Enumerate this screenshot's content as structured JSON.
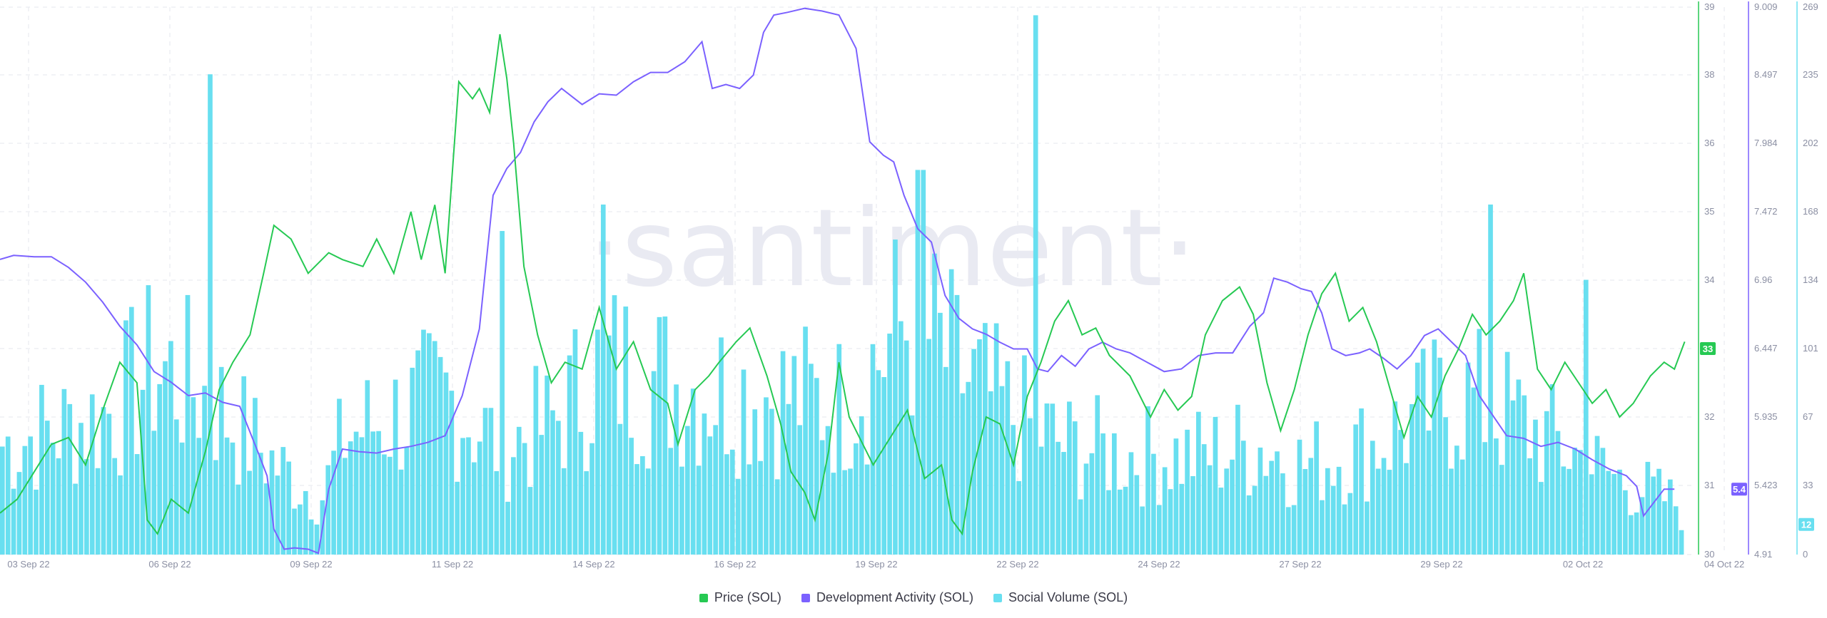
{
  "colors": {
    "price": "#26c953",
    "dev": "#7b61ff",
    "social": "#68dff0",
    "grid": "#e6e7ee",
    "axisText": "#8b8fa3",
    "watermark": "#e9eaf2"
  },
  "watermark": "·santiment·",
  "chart_data": {
    "type": "line",
    "title": "",
    "x_range": [
      "03 Sep 22",
      "04 Oct 22"
    ],
    "x_ticks": [
      "03 Sep 22",
      "06 Sep 22",
      "09 Sep 22",
      "11 Sep 22",
      "14 Sep 22",
      "16 Sep 22",
      "19 Sep 22",
      "22 Sep 22",
      "24 Sep 22",
      "27 Sep 22",
      "29 Sep 22",
      "02 Oct 22",
      "04 Oct 22"
    ],
    "axes": {
      "price": {
        "label": "Price (SOL)",
        "ticks": [
          "39",
          "38",
          "36",
          "35",
          "34",
          "33",
          "32",
          "31",
          "30"
        ],
        "tick_values": [
          39,
          38,
          36,
          35,
          34,
          33,
          32,
          31,
          30
        ]
      },
      "dev": {
        "label": "Development Activity (SOL)",
        "ticks": [
          "9.009",
          "8.497",
          "7.984",
          "7.472",
          "6.96",
          "6.447",
          "5.935",
          "5.423",
          "4.91"
        ],
        "range": [
          4.91,
          9.009
        ]
      },
      "social": {
        "label": "Social Volume (SOL)",
        "ticks": [
          "269",
          "235",
          "202",
          "168",
          "134",
          "101",
          "67",
          "33",
          "0"
        ],
        "range": [
          0,
          269
        ]
      }
    },
    "last_values": {
      "price": "33",
      "dev": "5.4",
      "social": "12"
    },
    "series": [
      {
        "name": "Price (SOL)",
        "points": [
          [
            0,
            30.6
          ],
          [
            0.5,
            30.8
          ],
          [
            1,
            31.2
          ],
          [
            1.5,
            31.6
          ],
          [
            2,
            31.7
          ],
          [
            2.5,
            31.3
          ],
          [
            3,
            32.1
          ],
          [
            3.5,
            32.8
          ],
          [
            4,
            32.5
          ],
          [
            4.3,
            30.5
          ],
          [
            4.6,
            30.3
          ],
          [
            5,
            30.8
          ],
          [
            5.5,
            30.6
          ],
          [
            6,
            31.5
          ],
          [
            6.4,
            32.4
          ],
          [
            6.8,
            32.8
          ],
          [
            7.3,
            33.2
          ],
          [
            7.7,
            34.1
          ],
          [
            8,
            34.8
          ],
          [
            8.5,
            34.6
          ],
          [
            9,
            34.1
          ],
          [
            9.6,
            34.4
          ],
          [
            10,
            34.3
          ],
          [
            10.6,
            34.2
          ],
          [
            11,
            34.6
          ],
          [
            11.5,
            34.1
          ],
          [
            12,
            35.0
          ],
          [
            12.3,
            34.3
          ],
          [
            12.7,
            35.1
          ],
          [
            13,
            34.1
          ],
          [
            13.4,
            37.8
          ],
          [
            13.8,
            37.3
          ],
          [
            14,
            37.6
          ],
          [
            14.3,
            36.9
          ],
          [
            14.6,
            38.6
          ],
          [
            14.8,
            37.9
          ],
          [
            15.0,
            36.0
          ],
          [
            15.3,
            34.2
          ],
          [
            15.7,
            33.2
          ],
          [
            16.1,
            32.5
          ],
          [
            16.5,
            32.8
          ],
          [
            17,
            32.7
          ],
          [
            17.5,
            33.6
          ],
          [
            18,
            32.7
          ],
          [
            18.5,
            33.1
          ],
          [
            19,
            32.4
          ],
          [
            19.5,
            32.2
          ],
          [
            19.8,
            31.6
          ],
          [
            20.3,
            32.4
          ],
          [
            20.7,
            32.6
          ],
          [
            21,
            32.8
          ],
          [
            21.5,
            33.1
          ],
          [
            21.9,
            33.3
          ],
          [
            22.4,
            32.6
          ],
          [
            22.8,
            31.9
          ],
          [
            23.1,
            31.2
          ],
          [
            23.5,
            30.9
          ],
          [
            23.8,
            30.5
          ],
          [
            24.2,
            31.5
          ],
          [
            24.5,
            32.8
          ],
          [
            24.8,
            32.0
          ],
          [
            25.1,
            31.7
          ],
          [
            25.5,
            31.3
          ],
          [
            26,
            31.7
          ],
          [
            26.5,
            32.1
          ],
          [
            27,
            31.1
          ],
          [
            27.5,
            31.3
          ],
          [
            27.8,
            30.5
          ],
          [
            28.1,
            30.3
          ],
          [
            28.4,
            31.2
          ],
          [
            28.8,
            32.0
          ],
          [
            29.2,
            31.9
          ],
          [
            29.6,
            31.3
          ],
          [
            30,
            32.3
          ],
          [
            30.4,
            32.8
          ],
          [
            30.8,
            33.4
          ],
          [
            31.2,
            33.7
          ],
          [
            31.6,
            33.2
          ],
          [
            32,
            33.3
          ],
          [
            32.4,
            32.9
          ],
          [
            33,
            32.6
          ],
          [
            33.6,
            32.0
          ],
          [
            34.0,
            32.4
          ],
          [
            34.4,
            32.1
          ],
          [
            34.8,
            32.3
          ],
          [
            35.2,
            33.2
          ],
          [
            35.7,
            33.7
          ],
          [
            36.2,
            33.9
          ],
          [
            36.6,
            33.5
          ],
          [
            37,
            32.5
          ],
          [
            37.4,
            31.8
          ],
          [
            37.8,
            32.4
          ],
          [
            38.2,
            33.2
          ],
          [
            38.6,
            33.8
          ],
          [
            39.0,
            34.1
          ],
          [
            39.4,
            33.4
          ],
          [
            39.8,
            33.6
          ],
          [
            40.2,
            33.1
          ],
          [
            40.6,
            32.4
          ],
          [
            41.0,
            31.7
          ],
          [
            41.4,
            32.3
          ],
          [
            41.8,
            32.0
          ],
          [
            42.2,
            32.6
          ],
          [
            42.6,
            33.0
          ],
          [
            43.0,
            33.5
          ],
          [
            43.4,
            33.2
          ],
          [
            43.8,
            33.4
          ],
          [
            44.2,
            33.7
          ],
          [
            44.5,
            34.1
          ],
          [
            44.9,
            32.7
          ],
          [
            45.3,
            32.4
          ],
          [
            45.7,
            32.8
          ],
          [
            46.1,
            32.5
          ],
          [
            46.5,
            32.2
          ],
          [
            46.9,
            32.4
          ],
          [
            47.3,
            32.0
          ],
          [
            47.7,
            32.2
          ],
          [
            48.2,
            32.6
          ],
          [
            48.6,
            32.8
          ],
          [
            48.9,
            32.7
          ],
          [
            49.2,
            33.1
          ]
        ]
      },
      {
        "name": "Development Activity (SOL)",
        "points": [
          [
            0,
            7.12
          ],
          [
            0.4,
            7.15
          ],
          [
            1,
            7.14
          ],
          [
            1.5,
            7.14
          ],
          [
            2,
            7.06
          ],
          [
            2.5,
            6.95
          ],
          [
            3,
            6.8
          ],
          [
            3.5,
            6.62
          ],
          [
            4,
            6.48
          ],
          [
            4.5,
            6.28
          ],
          [
            5,
            6.2
          ],
          [
            5.5,
            6.1
          ],
          [
            6,
            6.12
          ],
          [
            6.5,
            6.05
          ],
          [
            7,
            6.02
          ],
          [
            7.5,
            5.7
          ],
          [
            7.8,
            5.5
          ],
          [
            8.0,
            5.1
          ],
          [
            8.3,
            4.95
          ],
          [
            8.6,
            4.96
          ],
          [
            9.0,
            4.95
          ],
          [
            9.3,
            4.92
          ],
          [
            9.6,
            5.4
          ],
          [
            10.0,
            5.7
          ],
          [
            10.5,
            5.68
          ],
          [
            11,
            5.67
          ],
          [
            11.5,
            5.7
          ],
          [
            12,
            5.72
          ],
          [
            12.5,
            5.75
          ],
          [
            13,
            5.8
          ],
          [
            13.5,
            6.1
          ],
          [
            14,
            6.6
          ],
          [
            14.4,
            7.6
          ],
          [
            14.8,
            7.8
          ],
          [
            15.2,
            7.92
          ],
          [
            15.6,
            8.15
          ],
          [
            16,
            8.3
          ],
          [
            16.4,
            8.4
          ],
          [
            17,
            8.28
          ],
          [
            17.5,
            8.36
          ],
          [
            18,
            8.35
          ],
          [
            18.5,
            8.45
          ],
          [
            19,
            8.52
          ],
          [
            19.5,
            8.52
          ],
          [
            20,
            8.6
          ],
          [
            20.5,
            8.75
          ],
          [
            20.8,
            8.4
          ],
          [
            21.2,
            8.43
          ],
          [
            21.6,
            8.4
          ],
          [
            22,
            8.5
          ],
          [
            22.3,
            8.82
          ],
          [
            22.6,
            8.95
          ],
          [
            23,
            8.97
          ],
          [
            23.5,
            9.0
          ],
          [
            24,
            8.98
          ],
          [
            24.5,
            8.95
          ],
          [
            25.0,
            8.7
          ],
          [
            25.4,
            8.0
          ],
          [
            25.8,
            7.9
          ],
          [
            26.1,
            7.85
          ],
          [
            26.4,
            7.6
          ],
          [
            26.8,
            7.35
          ],
          [
            27.2,
            7.25
          ],
          [
            27.6,
            6.85
          ],
          [
            28.0,
            6.68
          ],
          [
            28.4,
            6.6
          ],
          [
            28.8,
            6.56
          ],
          [
            29.2,
            6.5
          ],
          [
            29.6,
            6.45
          ],
          [
            30,
            6.45
          ],
          [
            30.3,
            6.3
          ],
          [
            30.6,
            6.28
          ],
          [
            31,
            6.4
          ],
          [
            31.4,
            6.32
          ],
          [
            31.8,
            6.45
          ],
          [
            32.2,
            6.5
          ],
          [
            32.6,
            6.45
          ],
          [
            33,
            6.42
          ],
          [
            33.5,
            6.35
          ],
          [
            34,
            6.28
          ],
          [
            34.5,
            6.3
          ],
          [
            35,
            6.4
          ],
          [
            35.5,
            6.42
          ],
          [
            36,
            6.42
          ],
          [
            36.5,
            6.62
          ],
          [
            36.9,
            6.72
          ],
          [
            37.2,
            6.98
          ],
          [
            37.6,
            6.95
          ],
          [
            38,
            6.9
          ],
          [
            38.3,
            6.88
          ],
          [
            38.6,
            6.72
          ],
          [
            38.9,
            6.45
          ],
          [
            39.3,
            6.4
          ],
          [
            39.7,
            6.42
          ],
          [
            40.0,
            6.45
          ],
          [
            40.4,
            6.38
          ],
          [
            40.8,
            6.3
          ],
          [
            41.2,
            6.4
          ],
          [
            41.6,
            6.55
          ],
          [
            42.0,
            6.6
          ],
          [
            42.4,
            6.5
          ],
          [
            42.8,
            6.4
          ],
          [
            43.2,
            6.1
          ],
          [
            43.6,
            5.95
          ],
          [
            44,
            5.8
          ],
          [
            44.5,
            5.78
          ],
          [
            45,
            5.72
          ],
          [
            45.5,
            5.75
          ],
          [
            46,
            5.7
          ],
          [
            46.5,
            5.62
          ],
          [
            47,
            5.55
          ],
          [
            47.5,
            5.5
          ],
          [
            47.8,
            5.42
          ],
          [
            48.0,
            5.2
          ],
          [
            48.3,
            5.3
          ],
          [
            48.6,
            5.4
          ],
          [
            48.9,
            5.4
          ]
        ]
      },
      {
        "name": "Social Volume (SOL)",
        "type": "bar",
        "bar_count": 300,
        "peaks": [
          [
            6.1,
            236
          ],
          [
            14.6,
            159
          ],
          [
            17.5,
            172
          ],
          [
            26.8,
            189
          ],
          [
            30.2,
            265
          ],
          [
            43.5,
            172
          ],
          [
            46.3,
            135
          ]
        ],
        "approx_level": [
          [
            0,
            55
          ],
          [
            3,
            70
          ],
          [
            4.5,
            95
          ],
          [
            6,
            80
          ],
          [
            8,
            45
          ],
          [
            9.3,
            28
          ],
          [
            10,
            60
          ],
          [
            13,
            80
          ],
          [
            14.5,
            55
          ],
          [
            16,
            65
          ],
          [
            17.5,
            95
          ],
          [
            20,
            85
          ],
          [
            23,
            80
          ],
          [
            24.5,
            75
          ],
          [
            26.5,
            120
          ],
          [
            28,
            90
          ],
          [
            29.5,
            70
          ],
          [
            31,
            55
          ],
          [
            33,
            50
          ],
          [
            35,
            50
          ],
          [
            36.8,
            55
          ],
          [
            38,
            45
          ],
          [
            40,
            55
          ],
          [
            42.5,
            80
          ],
          [
            44,
            70
          ],
          [
            45.5,
            55
          ],
          [
            47,
            40
          ],
          [
            49,
            25
          ]
        ]
      }
    ]
  }
}
